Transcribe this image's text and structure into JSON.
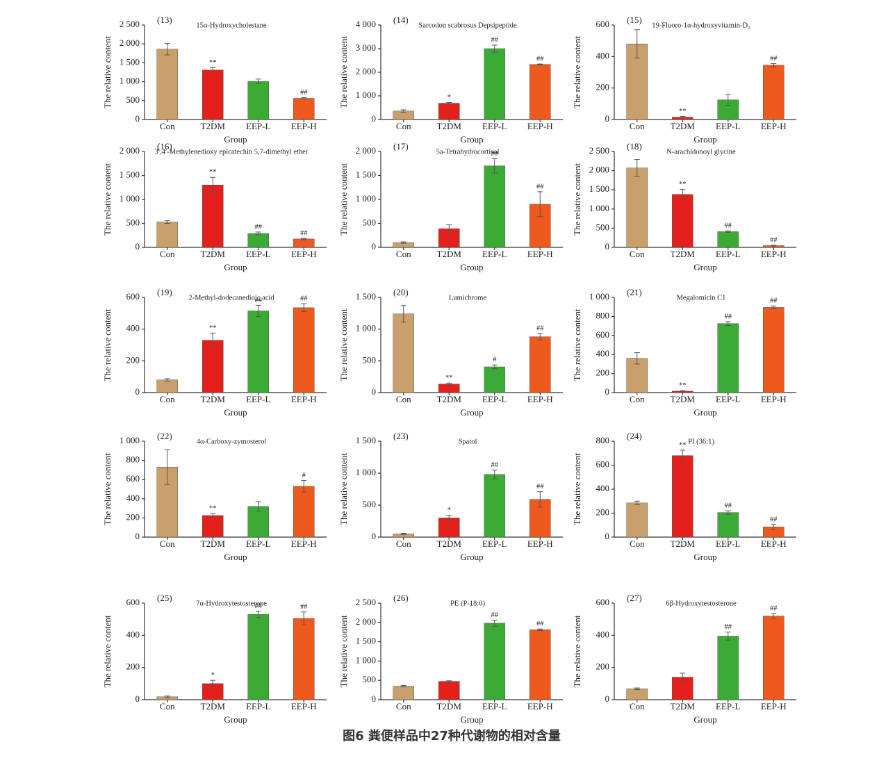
{
  "chart_data": [
    {
      "type": "bar",
      "panel": "(13)",
      "title": "15α-Hydroxycholestane",
      "ylabel": "The relative content",
      "xlabel": "Group",
      "categories": [
        "Con",
        "T2DM",
        "EEP-L",
        "EEP-H"
      ],
      "values": [
        1860,
        1310,
        1010,
        560
      ],
      "errors": [
        150,
        60,
        60,
        20
      ],
      "annotations": [
        null,
        "**",
        null,
        "##"
      ],
      "colors": [
        "#c9a06b",
        "#e3201b",
        "#3cab35",
        "#ee5a1d"
      ],
      "ylim": [
        0,
        2500
      ],
      "yticks": [
        0,
        500,
        {
          "value": 1000,
          "label": "1 000"
        },
        {
          "value": 1500,
          "label": "1 500"
        },
        {
          "value": 2000,
          "label": "2 000"
        },
        {
          "value": 2500,
          "label": "2 500"
        }
      ]
    },
    {
      "type": "bar",
      "panel": "(14)",
      "title": "Sarcodon scabrosus Depsipeptide",
      "ylabel": "The relative content",
      "xlabel": "Group",
      "categories": [
        "Con",
        "T2DM",
        "EEP-L",
        "EEP-H"
      ],
      "values": [
        360,
        690,
        3000,
        2330
      ],
      "errors": [
        50,
        30,
        150,
        20
      ],
      "annotations": [
        null,
        "*",
        "##",
        "##"
      ],
      "colors": [
        "#c9a06b",
        "#e3201b",
        "#3cab35",
        "#ee5a1d"
      ],
      "ylim": [
        0,
        4000
      ],
      "yticks": [
        0,
        {
          "value": 1000,
          "label": "1 000"
        },
        {
          "value": 2000,
          "label": "2 000"
        },
        {
          "value": 3000,
          "label": "3 000"
        },
        {
          "value": 4000,
          "label": "4 000"
        }
      ]
    },
    {
      "type": "bar",
      "panel": "(15)",
      "title": "19-Fluoro-1α-hydroxyvitamin-D₃",
      "ylabel": "The relative content",
      "xlabel": "Group",
      "categories": [
        "Con",
        "T2DM",
        "EEP-L",
        "EEP-H"
      ],
      "values": [
        480,
        15,
        125,
        345
      ],
      "errors": [
        90,
        5,
        35,
        10
      ],
      "annotations": [
        null,
        "**",
        null,
        "##"
      ],
      "colors": [
        "#c9a06b",
        "#e3201b",
        "#3cab35",
        "#ee5a1d"
      ],
      "ylim": [
        0,
        600
      ],
      "yticks": [
        0,
        200,
        400,
        600
      ]
    },
    {
      "type": "bar",
      "panel": "(16)",
      "title": "3′,4′-Methylenedioxy epicatechin 5,7-dimethyl ether",
      "ylabel": "The relative content",
      "xlabel": "Group",
      "categories": [
        "Con",
        "T2DM",
        "EEP-L",
        "EEP-H"
      ],
      "values": [
        530,
        1300,
        290,
        175
      ],
      "errors": [
        30,
        160,
        30,
        15
      ],
      "annotations": [
        null,
        "**",
        "##",
        "##"
      ],
      "colors": [
        "#c9a06b",
        "#e3201b",
        "#3cab35",
        "#ee5a1d"
      ],
      "ylim": [
        0,
        2000
      ],
      "yticks": [
        0,
        500,
        {
          "value": 1000,
          "label": "1 000"
        },
        {
          "value": 1500,
          "label": "1 500"
        },
        {
          "value": 2000,
          "label": "2 000"
        }
      ]
    },
    {
      "type": "bar",
      "panel": "(17)",
      "title": "5a-Tetrahydrocortisol",
      "ylabel": "The relative content",
      "xlabel": "Group",
      "categories": [
        "Con",
        "T2DM",
        "EEP-L",
        "EEP-H"
      ],
      "values": [
        100,
        390,
        1700,
        900
      ],
      "errors": [
        15,
        80,
        150,
        260
      ],
      "annotations": [
        null,
        null,
        "##",
        "##"
      ],
      "colors": [
        "#c9a06b",
        "#e3201b",
        "#3cab35",
        "#ee5a1d"
      ],
      "ylim": [
        0,
        2000
      ],
      "yticks": [
        0,
        500,
        {
          "value": 1000,
          "label": "1 000"
        },
        {
          "value": 1500,
          "label": "1 500"
        },
        {
          "value": 2000,
          "label": "2 000"
        }
      ]
    },
    {
      "type": "bar",
      "panel": "(18)",
      "title": "N-arachidonoyl glycine",
      "ylabel": "The relative content",
      "xlabel": "Group",
      "categories": [
        "Con",
        "T2DM",
        "EEP-L",
        "EEP-H"
      ],
      "values": [
        2070,
        1380,
        410,
        45
      ],
      "errors": [
        220,
        130,
        20,
        10
      ],
      "annotations": [
        null,
        "**",
        "##",
        "##"
      ],
      "colors": [
        "#c9a06b",
        "#e3201b",
        "#3cab35",
        "#ee5a1d"
      ],
      "ylim": [
        0,
        2500
      ],
      "yticks": [
        0,
        500,
        {
          "value": 1000,
          "label": "1 000"
        },
        {
          "value": 1500,
          "label": "1 500"
        },
        {
          "value": 2000,
          "label": "2 000"
        },
        {
          "value": 2500,
          "label": "2 500"
        }
      ]
    },
    {
      "type": "bar",
      "panel": "(19)",
      "title": "2-Methyl-dodecanedioic acid",
      "ylabel": "The relative content",
      "xlabel": "Group",
      "categories": [
        "Con",
        "T2DM",
        "EEP-L",
        "EEP-H"
      ],
      "values": [
        80,
        330,
        515,
        535
      ],
      "errors": [
        8,
        45,
        35,
        25
      ],
      "annotations": [
        null,
        "**",
        "##",
        "##"
      ],
      "colors": [
        "#c9a06b",
        "#e3201b",
        "#3cab35",
        "#ee5a1d"
      ],
      "ylim": [
        0,
        600
      ],
      "yticks": [
        0,
        200,
        400,
        600
      ]
    },
    {
      "type": "bar",
      "panel": "(20)",
      "title": "Lumichrome",
      "ylabel": "The relative content",
      "xlabel": "Group",
      "categories": [
        "Con",
        "T2DM",
        "EEP-L",
        "EEP-H"
      ],
      "values": [
        1240,
        135,
        405,
        880
      ],
      "errors": [
        130,
        15,
        30,
        50
      ],
      "annotations": [
        null,
        "**",
        "#",
        "##"
      ],
      "colors": [
        "#c9a06b",
        "#e3201b",
        "#3cab35",
        "#ee5a1d"
      ],
      "ylim": [
        0,
        1500
      ],
      "yticks": [
        0,
        500,
        {
          "value": 1000,
          "label": "1 000"
        },
        {
          "value": 1500,
          "label": "1 500"
        }
      ]
    },
    {
      "type": "bar",
      "panel": "(21)",
      "title": "Megalomicin C1",
      "ylabel": "The relative content",
      "xlabel": "Group",
      "categories": [
        "Con",
        "T2DM",
        "EEP-L",
        "EEP-H"
      ],
      "values": [
        360,
        15,
        725,
        895
      ],
      "errors": [
        60,
        5,
        20,
        15
      ],
      "annotations": [
        null,
        "**",
        "##",
        "##"
      ],
      "colors": [
        "#c9a06b",
        "#e3201b",
        "#3cab35",
        "#ee5a1d"
      ],
      "ylim": [
        0,
        1000
      ],
      "yticks": [
        0,
        200,
        400,
        600,
        800,
        {
          "value": 1000,
          "label": "1 000"
        }
      ]
    },
    {
      "type": "bar",
      "panel": "(22)",
      "title": "4α-Carboxy-zymosterol",
      "ylabel": "The relative content",
      "xlabel": "Group",
      "categories": [
        "Con",
        "T2DM",
        "EEP-L",
        "EEP-H"
      ],
      "values": [
        730,
        225,
        320,
        530
      ],
      "errors": [
        180,
        20,
        50,
        60
      ],
      "annotations": [
        null,
        "**",
        null,
        "#"
      ],
      "colors": [
        "#c9a06b",
        "#e3201b",
        "#3cab35",
        "#ee5a1d"
      ],
      "ylim": [
        0,
        1000
      ],
      "yticks": [
        0,
        200,
        400,
        600,
        800,
        {
          "value": 1000,
          "label": "1 000"
        }
      ]
    },
    {
      "type": "bar",
      "panel": "(23)",
      "title": "Spatol",
      "ylabel": "The relative content",
      "xlabel": "Group",
      "categories": [
        "Con",
        "T2DM",
        "EEP-L",
        "EEP-H"
      ],
      "values": [
        50,
        300,
        980,
        590
      ],
      "errors": [
        10,
        40,
        70,
        120
      ],
      "annotations": [
        null,
        "*",
        "##",
        "##"
      ],
      "colors": [
        "#c9a06b",
        "#e3201b",
        "#3cab35",
        "#ee5a1d"
      ],
      "ylim": [
        0,
        1500
      ],
      "yticks": [
        0,
        500,
        {
          "value": 1000,
          "label": "1 000"
        },
        {
          "value": 1500,
          "label": "1 500"
        }
      ]
    },
    {
      "type": "bar",
      "panel": "(24)",
      "title": "PI (36:1)",
      "ylabel": "The relative content",
      "xlabel": "Group",
      "categories": [
        "Con",
        "T2DM",
        "EEP-L",
        "EEP-H"
      ],
      "values": [
        285,
        680,
        205,
        85
      ],
      "errors": [
        15,
        45,
        15,
        20
      ],
      "annotations": [
        null,
        "**",
        "##",
        "##"
      ],
      "colors": [
        "#c9a06b",
        "#e3201b",
        "#3cab35",
        "#ee5a1d"
      ],
      "ylim": [
        0,
        800
      ],
      "yticks": [
        0,
        200,
        400,
        600,
        800
      ]
    },
    {
      "type": "bar",
      "panel": "(25)",
      "title": "7α-Hydroxytestosterone",
      "ylabel": "The relative content",
      "xlabel": "Group",
      "categories": [
        "Con",
        "T2DM",
        "EEP-L",
        "EEP-H"
      ],
      "values": [
        18,
        100,
        530,
        505
      ],
      "errors": [
        5,
        20,
        20,
        40
      ],
      "annotations": [
        null,
        "*",
        "##",
        "##"
      ],
      "colors": [
        "#c9a06b",
        "#e3201b",
        "#3cab35",
        "#ee5a1d"
      ],
      "ylim": [
        0,
        600
      ],
      "yticks": [
        0,
        200,
        400,
        600
      ]
    },
    {
      "type": "bar",
      "panel": "(26)",
      "title": "PE (P-18:0)",
      "ylabel": "The relative content",
      "xlabel": "Group",
      "categories": [
        "Con",
        "T2DM",
        "EEP-L",
        "EEP-H"
      ],
      "values": [
        350,
        475,
        1980,
        1810
      ],
      "errors": [
        20,
        15,
        80,
        20
      ],
      "annotations": [
        null,
        null,
        "##",
        "##"
      ],
      "colors": [
        "#c9a06b",
        "#e3201b",
        "#3cab35",
        "#ee5a1d"
      ],
      "ylim": [
        0,
        2500
      ],
      "yticks": [
        0,
        500,
        {
          "value": 1000,
          "label": "1 000"
        },
        {
          "value": 1500,
          "label": "1 500"
        },
        {
          "value": 2000,
          "label": "2 000"
        },
        {
          "value": 2500,
          "label": "2 500"
        }
      ]
    },
    {
      "type": "bar",
      "panel": "(27)",
      "title": "6β-Hydroxytestosterone",
      "ylabel": "The relative content",
      "xlabel": "Group",
      "categories": [
        "Con",
        "T2DM",
        "EEP-L",
        "EEP-H"
      ],
      "values": [
        68,
        140,
        395,
        520
      ],
      "errors": [
        5,
        25,
        25,
        15
      ],
      "annotations": [
        null,
        null,
        "##",
        "##"
      ],
      "colors": [
        "#c9a06b",
        "#e3201b",
        "#3cab35",
        "#ee5a1d"
      ],
      "ylim": [
        0,
        600
      ],
      "yticks": [
        0,
        200,
        400,
        600
      ]
    }
  ],
  "caption": "图6  粪便样品中27种代谢物的相对含量"
}
